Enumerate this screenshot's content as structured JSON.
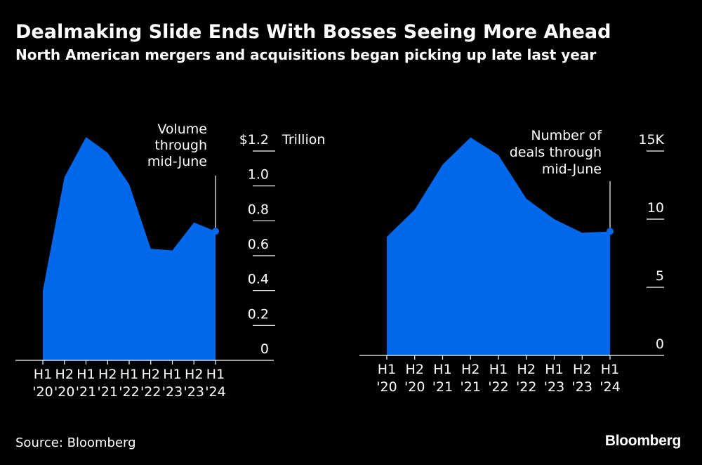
{
  "header": {
    "title": "Dealmaking Slide Ends With Bosses Seeing More Ahead",
    "subtitle": "North American mergers and acquisitions began picking up late last year"
  },
  "footer": {
    "source": "Source: Bloomberg",
    "logo": "Bloomberg"
  },
  "colors": {
    "fill": "#0068EB",
    "background": "#000000",
    "text": "#FFFFFF"
  },
  "chart_data": [
    {
      "type": "area",
      "title": "",
      "categories": [
        "H1 '20",
        "H2 '20",
        "H1 '21",
        "H2 '21",
        "H1 '22",
        "H2 '22",
        "H1 '23",
        "H2 '23",
        "H1 '24"
      ],
      "category_lines": [
        [
          "H1",
          "'20"
        ],
        [
          "H2",
          "'20"
        ],
        [
          "H1",
          "'21"
        ],
        [
          "H2",
          "'21"
        ],
        [
          "H1",
          "'22"
        ],
        [
          "H2",
          "'22"
        ],
        [
          "H1",
          "'23"
        ],
        [
          "H2",
          "'23"
        ],
        [
          "H1",
          "'24"
        ]
      ],
      "values": [
        0.4,
        1.05,
        1.28,
        1.19,
        1.01,
        0.64,
        0.63,
        0.79,
        0.74
      ],
      "ylim": [
        0,
        1.2
      ],
      "yticks": [
        "0",
        "0.2",
        "0.4",
        "0.6",
        "0.8",
        "1.0",
        "$1.2"
      ],
      "y_unit": "Trillion",
      "annotation": [
        "Volume",
        "through",
        "mid-June"
      ],
      "axis_side": "right"
    },
    {
      "type": "area",
      "title": "",
      "categories": [
        "H1 '20",
        "H2 '20",
        "H1 '21",
        "H2 '21",
        "H1 '22",
        "H2 '22",
        "H1 '23",
        "H2 '23",
        "H1 '24"
      ],
      "category_lines": [
        [
          "H1",
          "'20"
        ],
        [
          "H2",
          "'20"
        ],
        [
          "H1",
          "'21"
        ],
        [
          "H2",
          "'21"
        ],
        [
          "H1",
          "'22"
        ],
        [
          "H2",
          "'22"
        ],
        [
          "H1",
          "'23"
        ],
        [
          "H2",
          "'23"
        ],
        [
          "H1",
          "'24"
        ]
      ],
      "values": [
        8.7,
        10.7,
        14.0,
        16.0,
        14.7,
        11.5,
        10.0,
        9.0,
        9.1
      ],
      "ylim": [
        0,
        15
      ],
      "yticks": [
        "0",
        "5",
        "10",
        "15K"
      ],
      "y_unit": "",
      "annotation": [
        "Number of",
        "deals through",
        "mid-June"
      ],
      "axis_side": "right"
    }
  ]
}
